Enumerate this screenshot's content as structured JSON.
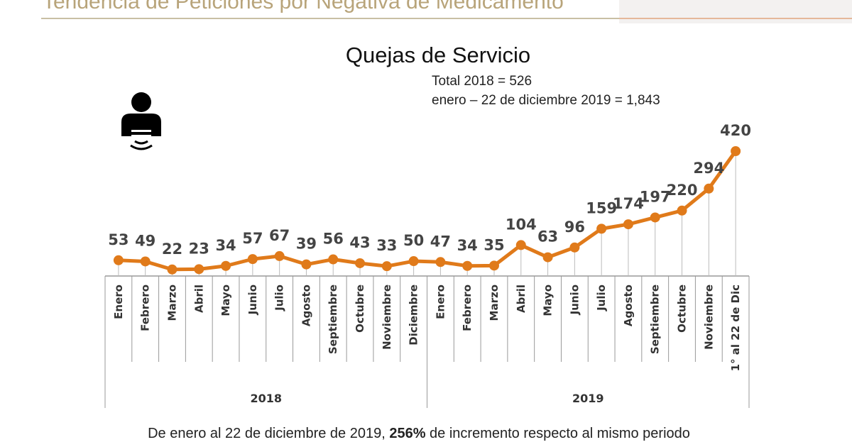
{
  "header": {
    "title": "Tendencia de Peticiones por Negativa de Medicamento"
  },
  "icon": "person-complaint-icon",
  "totals": {
    "line1_label": "Total 2018 = ",
    "line1_value": "526",
    "line2_label": "enero – 22 de diciembre 2019 = ",
    "line2_value": "1,843"
  },
  "footer": {
    "pre": "De enero al 22 de diciembre de 2019, ",
    "bold": "256%",
    "post": " de incremento respecto al mismo periodo"
  },
  "chart_data": {
    "type": "line",
    "title": "Quejas de Servicio",
    "color": "#e07a1a",
    "categories": [
      "Enero",
      "Febrero",
      "Marzo",
      "Abril",
      "Mayo",
      "Junio",
      "Julio",
      "Agosto",
      "Septiembre",
      "Octubre",
      "Noviembre",
      "Diciembre",
      "Enero",
      "Febrero",
      "Marzo",
      "Abril",
      "Mayo",
      "Junio",
      "Julio",
      "Agosto",
      "Septiembre",
      "Octubre",
      "Noviembre",
      "1° al 22 de Dic"
    ],
    "groups": [
      {
        "label": "2018",
        "count": 12
      },
      {
        "label": "2019",
        "count": 12
      }
    ],
    "values": [
      53,
      49,
      22,
      23,
      34,
      57,
      67,
      39,
      56,
      43,
      33,
      50,
      47,
      34,
      35,
      104,
      63,
      96,
      159,
      174,
      197,
      220,
      294,
      420
    ],
    "ylim": [
      0,
      420
    ],
    "grid": false,
    "data_labels": true
  }
}
